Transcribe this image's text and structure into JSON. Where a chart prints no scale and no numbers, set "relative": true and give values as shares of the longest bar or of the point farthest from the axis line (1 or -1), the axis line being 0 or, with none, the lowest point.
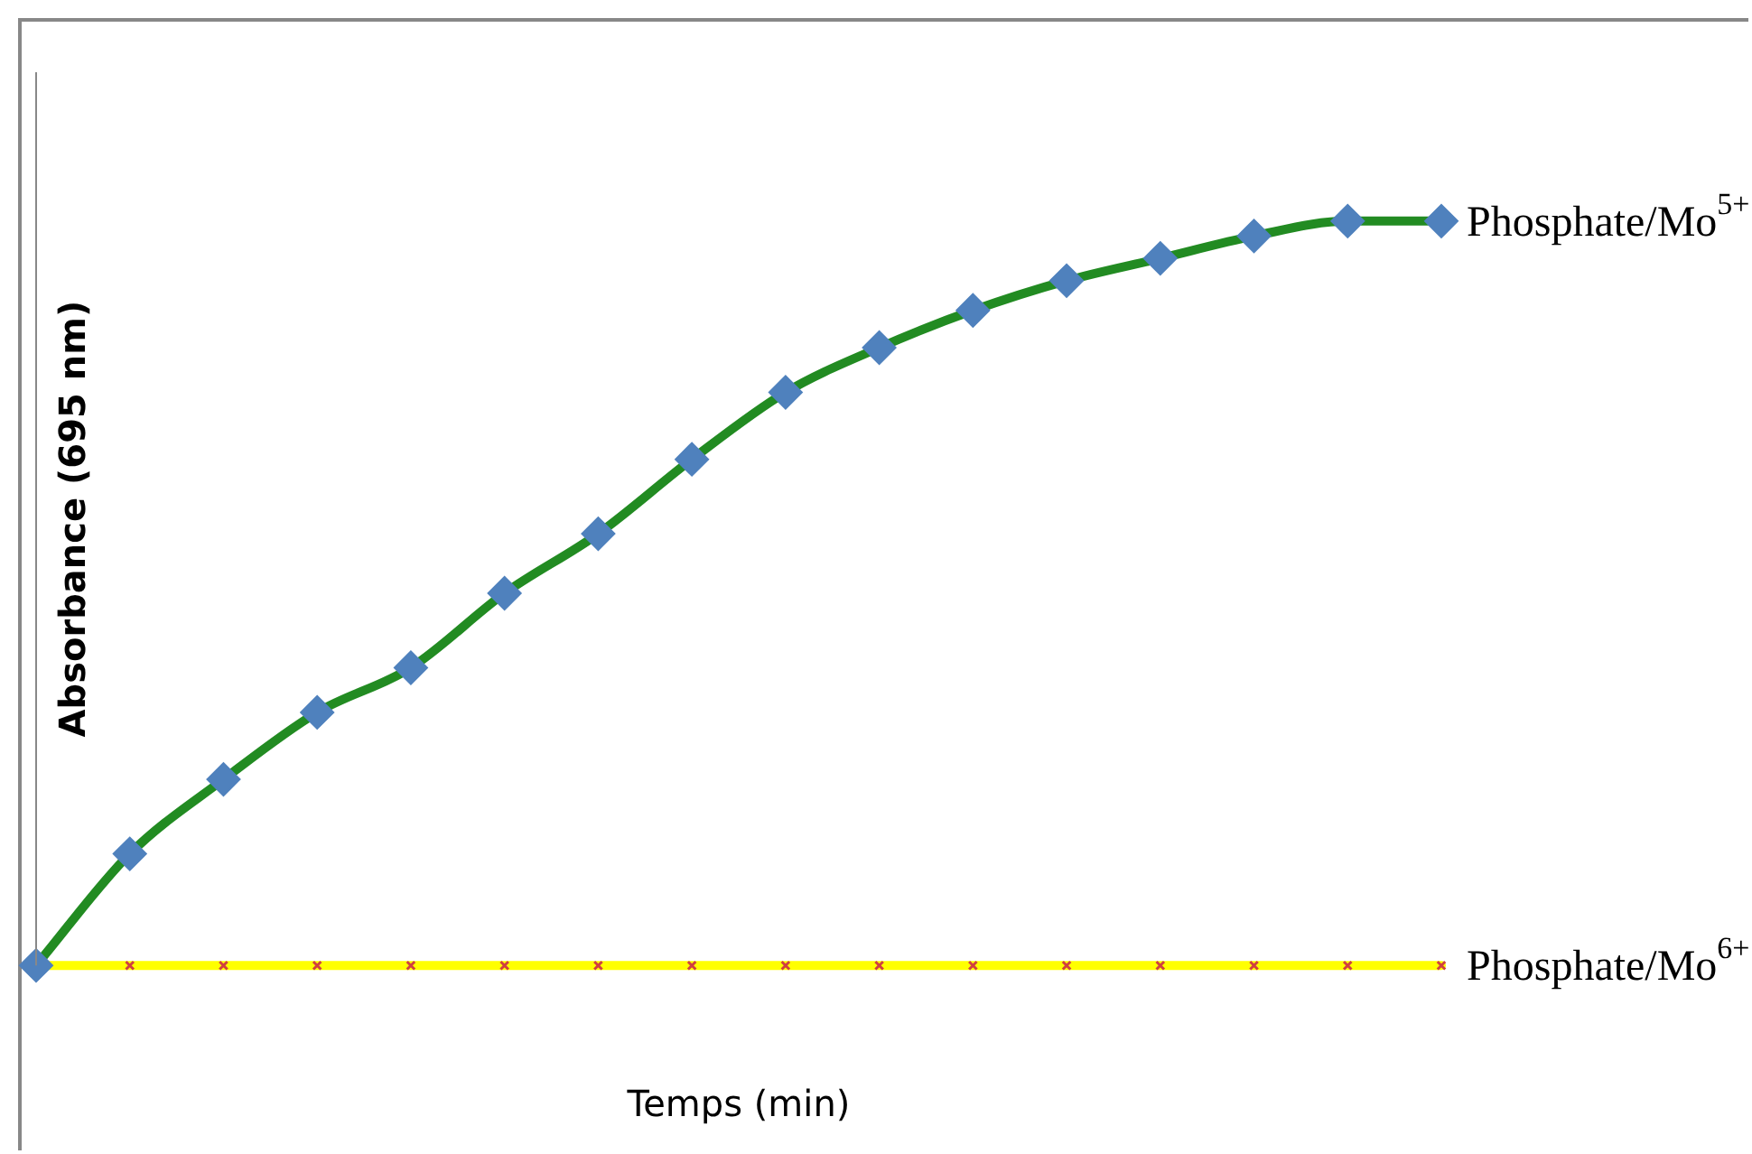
{
  "chart_data": {
    "type": "line",
    "xlabel": "Temps (min)",
    "ylabel": "Absorbance (695 nm)",
    "relative": true,
    "grid": false,
    "legend": false,
    "line_style": "solid",
    "categories": [
      null,
      null,
      null,
      null,
      null,
      null,
      null,
      null,
      null,
      null,
      null,
      null,
      null,
      null,
      null,
      null
    ],
    "series": [
      {
        "name": "Phosphate/Mo$^{5+}$",
        "color": "#228b22",
        "marker": "diamond",
        "values": [
          0,
          0.15,
          0.25,
          0.34,
          0.4,
          0.5,
          0.58,
          0.68,
          0.77,
          0.83,
          0.88,
          0.92,
          0.95,
          0.98,
          1,
          1
        ]
      },
      {
        "name": "Phosphate/Mo$^{6+}$",
        "color": "#ffff00",
        "marker": "cross",
        "values": [
          0,
          0,
          0,
          0,
          0,
          0,
          0,
          0,
          0,
          0,
          0,
          0,
          0,
          0,
          0,
          0
        ]
      }
    ]
  }
}
